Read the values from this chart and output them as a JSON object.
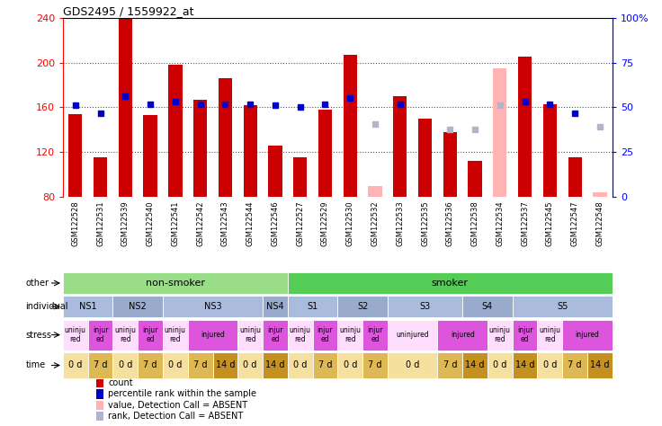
{
  "title": "GDS2495 / 1559922_at",
  "samples": [
    "GSM122528",
    "GSM122531",
    "GSM122539",
    "GSM122540",
    "GSM122541",
    "GSM122542",
    "GSM122543",
    "GSM122544",
    "GSM122546",
    "GSM122527",
    "GSM122529",
    "GSM122530",
    "GSM122532",
    "GSM122533",
    "GSM122535",
    "GSM122536",
    "GSM122538",
    "GSM122534",
    "GSM122537",
    "GSM122545",
    "GSM122547",
    "GSM122548"
  ],
  "count_values": [
    154,
    115,
    240,
    153,
    198,
    167,
    186,
    162,
    126,
    115,
    158,
    207,
    null,
    170,
    150,
    138,
    112,
    null,
    205,
    163,
    115,
    null
  ],
  "count_absent": [
    null,
    null,
    null,
    null,
    null,
    null,
    null,
    null,
    null,
    null,
    null,
    null,
    90,
    null,
    null,
    null,
    null,
    195,
    null,
    null,
    null,
    84
  ],
  "rank_values": [
    162,
    155,
    170,
    163,
    165,
    163,
    163,
    163,
    162,
    160,
    163,
    168,
    null,
    163,
    null,
    null,
    null,
    null,
    165,
    163,
    155,
    null
  ],
  "rank_absent": [
    null,
    null,
    null,
    null,
    null,
    null,
    null,
    null,
    null,
    null,
    null,
    null,
    145,
    null,
    null,
    140,
    140,
    162,
    null,
    null,
    null,
    143
  ],
  "ylim_left": [
    80,
    240
  ],
  "ylim_right": [
    0,
    100
  ],
  "left_ticks": [
    80,
    120,
    160,
    200,
    240
  ],
  "right_ticks": [
    0,
    25,
    50,
    75,
    100
  ],
  "right_tick_labels": [
    "0",
    "25",
    "50",
    "75",
    "100%"
  ],
  "bar_color": "#cc0000",
  "bar_absent_color": "#ffb3b3",
  "rank_color": "#0000cc",
  "rank_absent_color": "#b3b3cc",
  "dotted_line_color": "#555555",
  "dotted_lines": [
    120,
    160,
    200
  ],
  "sample_label_bg": "#cccccc",
  "other_groups": [
    {
      "text": "non-smoker",
      "start": 0,
      "end": 8,
      "color": "#99dd88"
    },
    {
      "text": "smoker",
      "start": 9,
      "end": 21,
      "color": "#55cc55"
    }
  ],
  "individual_groups": [
    {
      "text": "NS1",
      "start": 0,
      "end": 1,
      "color": "#aabbdd"
    },
    {
      "text": "NS2",
      "start": 2,
      "end": 3,
      "color": "#99aacc"
    },
    {
      "text": "NS3",
      "start": 4,
      "end": 7,
      "color": "#aabbdd"
    },
    {
      "text": "NS4",
      "start": 8,
      "end": 8,
      "color": "#99aacc"
    },
    {
      "text": "S1",
      "start": 9,
      "end": 10,
      "color": "#aabbdd"
    },
    {
      "text": "S2",
      "start": 11,
      "end": 12,
      "color": "#99aacc"
    },
    {
      "text": "S3",
      "start": 13,
      "end": 15,
      "color": "#aabbdd"
    },
    {
      "text": "S4",
      "start": 16,
      "end": 17,
      "color": "#99aacc"
    },
    {
      "text": "S5",
      "start": 18,
      "end": 21,
      "color": "#aabbdd"
    }
  ],
  "stress_groups": [
    {
      "text": "uninju\nred",
      "start": 0,
      "end": 0,
      "color": "#ffddff"
    },
    {
      "text": "injur\ned",
      "start": 1,
      "end": 1,
      "color": "#dd55dd"
    },
    {
      "text": "uninju\nred",
      "start": 2,
      "end": 2,
      "color": "#ffddff"
    },
    {
      "text": "injur\ned",
      "start": 3,
      "end": 3,
      "color": "#dd55dd"
    },
    {
      "text": "uninju\nred",
      "start": 4,
      "end": 4,
      "color": "#ffddff"
    },
    {
      "text": "injured",
      "start": 5,
      "end": 6,
      "color": "#dd55dd"
    },
    {
      "text": "uninju\nred",
      "start": 7,
      "end": 7,
      "color": "#ffddff"
    },
    {
      "text": "injur\ned",
      "start": 8,
      "end": 8,
      "color": "#dd55dd"
    },
    {
      "text": "uninju\nred",
      "start": 9,
      "end": 9,
      "color": "#ffddff"
    },
    {
      "text": "injur\ned",
      "start": 10,
      "end": 10,
      "color": "#dd55dd"
    },
    {
      "text": "uninju\nred",
      "start": 11,
      "end": 11,
      "color": "#ffddff"
    },
    {
      "text": "injur\ned",
      "start": 12,
      "end": 12,
      "color": "#dd55dd"
    },
    {
      "text": "uninjured",
      "start": 13,
      "end": 14,
      "color": "#ffddff"
    },
    {
      "text": "injured",
      "start": 15,
      "end": 16,
      "color": "#dd55dd"
    },
    {
      "text": "uninju\nred",
      "start": 17,
      "end": 17,
      "color": "#ffddff"
    },
    {
      "text": "injur\ned",
      "start": 18,
      "end": 18,
      "color": "#dd55dd"
    },
    {
      "text": "uninju\nred",
      "start": 19,
      "end": 19,
      "color": "#ffddff"
    },
    {
      "text": "injured",
      "start": 20,
      "end": 21,
      "color": "#dd55dd"
    }
  ],
  "time_groups": [
    {
      "text": "0 d",
      "start": 0,
      "end": 0,
      "color": "#f5e0a0"
    },
    {
      "text": "7 d",
      "start": 1,
      "end": 1,
      "color": "#ddb855"
    },
    {
      "text": "0 d",
      "start": 2,
      "end": 2,
      "color": "#f5e0a0"
    },
    {
      "text": "7 d",
      "start": 3,
      "end": 3,
      "color": "#ddb855"
    },
    {
      "text": "0 d",
      "start": 4,
      "end": 4,
      "color": "#f5e0a0"
    },
    {
      "text": "7 d",
      "start": 5,
      "end": 5,
      "color": "#ddb855"
    },
    {
      "text": "14 d",
      "start": 6,
      "end": 6,
      "color": "#c49020"
    },
    {
      "text": "0 d",
      "start": 7,
      "end": 7,
      "color": "#f5e0a0"
    },
    {
      "text": "14 d",
      "start": 8,
      "end": 8,
      "color": "#c49020"
    },
    {
      "text": "0 d",
      "start": 9,
      "end": 9,
      "color": "#f5e0a0"
    },
    {
      "text": "7 d",
      "start": 10,
      "end": 10,
      "color": "#ddb855"
    },
    {
      "text": "0 d",
      "start": 11,
      "end": 11,
      "color": "#f5e0a0"
    },
    {
      "text": "7 d",
      "start": 12,
      "end": 12,
      "color": "#ddb855"
    },
    {
      "text": "0 d",
      "start": 13,
      "end": 14,
      "color": "#f5e0a0"
    },
    {
      "text": "7 d",
      "start": 15,
      "end": 15,
      "color": "#ddb855"
    },
    {
      "text": "14 d",
      "start": 16,
      "end": 16,
      "color": "#c49020"
    },
    {
      "text": "0 d",
      "start": 17,
      "end": 17,
      "color": "#f5e0a0"
    },
    {
      "text": "14 d",
      "start": 18,
      "end": 18,
      "color": "#c49020"
    },
    {
      "text": "0 d",
      "start": 19,
      "end": 19,
      "color": "#f5e0a0"
    },
    {
      "text": "7 d",
      "start": 20,
      "end": 20,
      "color": "#ddb855"
    },
    {
      "text": "14 d",
      "start": 21,
      "end": 21,
      "color": "#c49020"
    }
  ],
  "legend": [
    {
      "label": "count",
      "color": "#cc0000"
    },
    {
      "label": "percentile rank within the sample",
      "color": "#0000cc"
    },
    {
      "label": "value, Detection Call = ABSENT",
      "color": "#ffb3b3"
    },
    {
      "label": "rank, Detection Call = ABSENT",
      "color": "#b3b3cc"
    }
  ]
}
